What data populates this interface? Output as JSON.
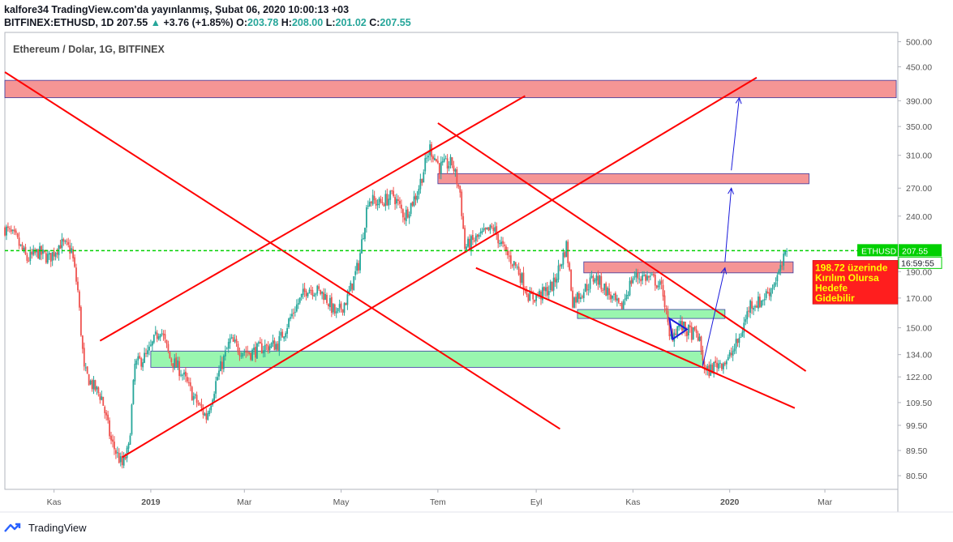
{
  "header": {
    "publisher": "kalfore34",
    "published_text": "TradingView.com'da yayınlanmış, Şubat 06, 2020 10:00:13 +03",
    "symbol": "BITFINEX:ETHUSD, 1D",
    "last": "207.55",
    "change": "+3.76 (+1.85%)",
    "o_label": "O:",
    "o": "203.78",
    "h_label": "H:",
    "h": "208.00",
    "l_label": "L:",
    "l": "201.02",
    "c_label": "C:",
    "c": "207.55"
  },
  "chart_title": "Ethereum / Dolar, 1G, BITFINEX",
  "price_tag": {
    "symbol": "ETHUSD",
    "price": "207.55",
    "countdown": "16:59:55",
    "color": "#00d000"
  },
  "annotation": {
    "lines": [
      "198.72 üzerinde",
      "Kırılım Olursa",
      "Hedefe",
      "Gidebilir"
    ],
    "bg": "#ff1e1e",
    "color": "#ffff00"
  },
  "footer": {
    "brand": "TradingView"
  },
  "colors": {
    "up": "#26a69a",
    "down": "#ef5350",
    "trend": "#ff0000",
    "resistance": "#f48a8a",
    "support": "#8ef5a6",
    "arrow": "#1a1adb",
    "current_line": "#00d000"
  },
  "chart_data": {
    "type": "candlestick",
    "title": "Ethereum / Dolar, 1G, BITFINEX",
    "scale": "log",
    "y_ticks": [
      500,
      450,
      390,
      350,
      310,
      270,
      240,
      190,
      170,
      150,
      134,
      122,
      109.5,
      99.5,
      89.5,
      80.5
    ],
    "y_tick_labels": [
      "500.00",
      "450.00",
      "390.00",
      "350.00",
      "310.00",
      "270.00",
      "240.00",
      "190.00",
      "170.00",
      "150.00",
      "134.00",
      "122.00",
      "109.50",
      "99.50",
      "89.50",
      "80.50"
    ],
    "x_ticks": [
      "Kas",
      "2019",
      "Mar",
      "May",
      "Tem",
      "Eyl",
      "Kas",
      "2020",
      "Mar"
    ],
    "x_range": [
      "2018-10-01",
      "2020-04-16"
    ],
    "y_range": [
      76,
      520
    ],
    "current_price": 207.55,
    "anchors": [
      [
        "2018-10-01",
        228
      ],
      [
        "2018-10-08",
        218
      ],
      [
        "2018-10-15",
        200
      ],
      [
        "2018-10-22",
        206
      ],
      [
        "2018-10-29",
        201
      ],
      [
        "2018-11-05",
        214
      ],
      [
        "2018-11-12",
        208
      ],
      [
        "2018-11-16",
        175
      ],
      [
        "2018-11-20",
        125
      ],
      [
        "2018-11-25",
        118
      ],
      [
        "2018-12-01",
        112
      ],
      [
        "2018-12-07",
        93
      ],
      [
        "2018-12-14",
        84
      ],
      [
        "2018-12-18",
        90
      ],
      [
        "2018-12-22",
        128
      ],
      [
        "2018-12-30",
        134
      ],
      [
        "2019-01-07",
        150
      ],
      [
        "2019-01-13",
        132
      ],
      [
        "2019-01-20",
        125
      ],
      [
        "2019-01-28",
        112
      ],
      [
        "2019-02-05",
        103
      ],
      [
        "2019-02-12",
        122
      ],
      [
        "2019-02-20",
        142
      ],
      [
        "2019-02-26",
        137
      ],
      [
        "2019-03-05",
        135
      ],
      [
        "2019-03-12",
        138
      ],
      [
        "2019-03-22",
        140
      ],
      [
        "2019-04-02",
        163
      ],
      [
        "2019-04-10",
        178
      ],
      [
        "2019-04-20",
        173
      ],
      [
        "2019-04-28",
        158
      ],
      [
        "2019-05-05",
        170
      ],
      [
        "2019-05-12",
        196
      ],
      [
        "2019-05-18",
        258
      ],
      [
        "2019-05-25",
        253
      ],
      [
        "2019-06-03",
        262
      ],
      [
        "2019-06-10",
        240
      ],
      [
        "2019-06-18",
        265
      ],
      [
        "2019-06-26",
        320
      ],
      [
        "2019-07-02",
        295
      ],
      [
        "2019-07-10",
        300
      ],
      [
        "2019-07-15",
        265
      ],
      [
        "2019-07-18",
        210
      ],
      [
        "2019-07-25",
        218
      ],
      [
        "2019-08-05",
        228
      ],
      [
        "2019-08-12",
        207
      ],
      [
        "2019-08-20",
        193
      ],
      [
        "2019-08-28",
        170
      ],
      [
        "2019-09-05",
        173
      ],
      [
        "2019-09-12",
        180
      ],
      [
        "2019-09-20",
        212
      ],
      [
        "2019-09-24",
        168
      ],
      [
        "2019-10-01",
        176
      ],
      [
        "2019-10-08",
        186
      ],
      [
        "2019-10-15",
        176
      ],
      [
        "2019-10-24",
        162
      ],
      [
        "2019-11-01",
        186
      ],
      [
        "2019-11-08",
        186
      ],
      [
        "2019-11-15",
        183
      ],
      [
        "2019-11-20",
        175
      ],
      [
        "2019-11-24",
        143
      ],
      [
        "2019-11-30",
        152
      ],
      [
        "2019-12-05",
        148
      ],
      [
        "2019-12-12",
        145
      ],
      [
        "2019-12-17",
        124
      ],
      [
        "2019-12-24",
        129
      ],
      [
        "2019-12-31",
        131
      ],
      [
        "2020-01-07",
        143
      ],
      [
        "2020-01-14",
        166
      ],
      [
        "2020-01-20",
        167
      ],
      [
        "2020-01-27",
        177
      ],
      [
        "2020-02-02",
        191
      ],
      [
        "2020-02-06",
        207.55
      ]
    ],
    "drawings": {
      "resistance_zones": [
        {
          "from": "2018-10-01",
          "to": "2020-04-15",
          "low": 395,
          "high": 425
        },
        {
          "from": "2019-07-01",
          "to": "2020-02-20",
          "low": 275,
          "high": 287
        },
        {
          "from": "2019-10-01",
          "to": "2020-02-10",
          "low": 189,
          "high": 198
        }
      ],
      "support_zones": [
        {
          "from": "2019-01-01",
          "to": "2019-12-15",
          "low": 127,
          "high": 136
        },
        {
          "from": "2019-09-27",
          "to": "2019-12-29",
          "low": 156,
          "high": 162
        }
      ],
      "trend_lines": [
        {
          "from": [
            "2018-10-01",
            440
          ],
          "to": [
            "2019-09-16",
            98
          ]
        },
        {
          "from": [
            "2018-11-30",
            142
          ],
          "to": [
            "2019-08-25",
            398
          ]
        },
        {
          "from": [
            "2018-12-14",
            87
          ],
          "to": [
            "2020-01-18",
            430
          ]
        },
        {
          "from": [
            "2019-07-01",
            355
          ],
          "to": [
            "2020-02-18",
            125
          ]
        },
        {
          "from": [
            "2019-07-25",
            193
          ],
          "to": [
            "2020-02-11",
            107
          ]
        }
      ],
      "arrows": [
        {
          "from": [
            "2019-12-15",
            128
          ],
          "to": [
            "2019-12-29",
            193
          ]
        },
        {
          "from": [
            "2019-12-29",
            198
          ],
          "to": [
            "2020-01-02",
            270
          ]
        },
        {
          "from": [
            "2020-01-02",
            291
          ],
          "to": [
            "2020-01-07",
            395
          ]
        }
      ],
      "triangle": [
        [
          "2019-11-24",
          156
        ],
        [
          "2019-12-05",
          149
        ],
        [
          "2019-11-26",
          143
        ]
      ]
    }
  }
}
